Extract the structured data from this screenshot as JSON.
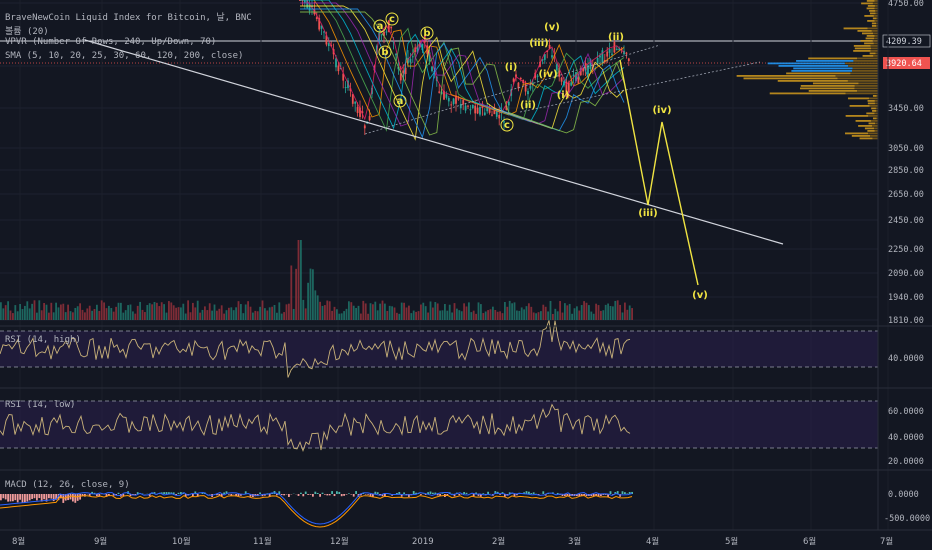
{
  "legend": {
    "title": "BraveNewCoin Liquid Index for Bitcoin, 날, BNC",
    "volume": "볼륨 (20)",
    "vpvr": "VPVR (Number Of Rows, 240, Up/Down, 70)",
    "sma": "SMA (5, 10, 20, 25, 30, 60, 120, 200, close)"
  },
  "colors": {
    "background": "#131722",
    "up": "#26a69a",
    "down": "#ef5350",
    "wave_label": "#f0e442",
    "rsi_line": "#c9b27a",
    "rsi_band": "#2a1f4d",
    "macd_line": "#2962ff",
    "signal_line": "#ff9800",
    "price_tag": "#ef5350",
    "vpvr_bar": "#c7921d",
    "vpvr_poc": "#2196f3"
  },
  "chart_data": [
    {
      "type": "line",
      "name": "price",
      "x_labels": [
        "8월",
        "9월",
        "10월",
        "11월",
        "12월",
        "2019",
        "2월",
        "3월",
        "4월",
        "5월",
        "6월",
        "7월"
      ],
      "y_ticks": [
        "4750.00",
        "4209.39",
        "3920.64",
        "3450.00",
        "3050.00",
        "2850.00",
        "2650.00",
        "2450.00",
        "2250.00",
        "2090.00",
        "1940.00",
        "1810.00"
      ],
      "current_price": "3920.64",
      "level_price": "4209.39",
      "wave_labels": [
        "a",
        "c",
        "b",
        "b",
        "a",
        "c",
        "(v)",
        "(iii)",
        "(iv)",
        "(i)",
        "(ii)",
        "(i)",
        "(ii)",
        "(iii)",
        "(iv)",
        "(v)"
      ],
      "projection_labels": [
        "(iii)",
        "(iv)",
        "(v)"
      ]
    },
    {
      "type": "line",
      "name": "RSI (14, high)",
      "y_ticks": [
        "40.0000"
      ]
    },
    {
      "type": "line",
      "name": "RSI (14, low)",
      "y_ticks": [
        "60.0000",
        "40.0000",
        "20.0000"
      ]
    },
    {
      "type": "bar",
      "name": "MACD (12, 26, close, 9)",
      "y_ticks": [
        "0.0000",
        "-500.0000"
      ]
    }
  ]
}
